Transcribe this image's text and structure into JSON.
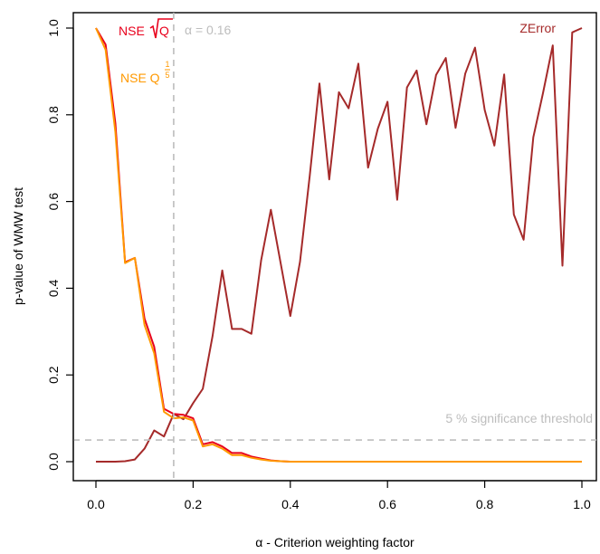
{
  "chart_data": {
    "type": "line",
    "title": "",
    "xlabel": "α - Criterion weighting factor",
    "ylabel": "p-value of WMW test",
    "xlim": [
      0,
      1
    ],
    "ylim": [
      0,
      1
    ],
    "x_ticks": [
      "0.0",
      "0.2",
      "0.4",
      "0.6",
      "0.8",
      "1.0"
    ],
    "y_ticks": [
      "0.0",
      "0.2",
      "0.4",
      "0.6",
      "0.8",
      "1.0"
    ],
    "grid": false,
    "x": [
      0.0,
      0.02,
      0.04,
      0.06,
      0.08,
      0.1,
      0.12,
      0.14,
      0.16,
      0.18,
      0.2,
      0.22,
      0.24,
      0.26,
      0.28,
      0.3,
      0.32,
      0.34,
      0.36,
      0.38,
      0.4,
      0.42,
      0.44,
      0.46,
      0.48,
      0.5,
      0.52,
      0.54,
      0.56,
      0.58,
      0.6,
      0.62,
      0.64,
      0.66,
      0.68,
      0.7,
      0.72,
      0.74,
      0.76,
      0.78,
      0.8,
      0.82,
      0.84,
      0.86,
      0.88,
      0.9,
      0.92,
      0.94,
      0.96,
      0.98,
      1.0
    ],
    "series": [
      {
        "name": "ZError",
        "color": "#a52a2a",
        "values": [
          0.0,
          0.0,
          0.0,
          0.001,
          0.005,
          0.03,
          0.072,
          0.058,
          0.11,
          0.098,
          0.135,
          0.168,
          0.29,
          0.441,
          0.306,
          0.306,
          0.295,
          0.465,
          0.581,
          0.458,
          0.336,
          0.461,
          0.66,
          0.872,
          0.651,
          0.852,
          0.815,
          0.918,
          0.678,
          0.768,
          0.83,
          0.604,
          0.863,
          0.902,
          0.778,
          0.892,
          0.931,
          0.77,
          0.895,
          0.955,
          0.811,
          0.729,
          0.893,
          0.57,
          0.512,
          0.748,
          0.85,
          0.96,
          0.452,
          0.99,
          1.0
        ]
      },
      {
        "name": "NSE √Q",
        "color": "#e8001c",
        "values": [
          1.0,
          0.962,
          0.78,
          0.46,
          0.47,
          0.33,
          0.265,
          0.122,
          0.11,
          0.108,
          0.1,
          0.04,
          0.045,
          0.035,
          0.02,
          0.02,
          0.012,
          0.007,
          0.003,
          0.001,
          0.0,
          0.0,
          0.0,
          0.0,
          0.0,
          0.0,
          0.0,
          0.0,
          0.0,
          0.0,
          0.0,
          0.0,
          0.0,
          0.0,
          0.0,
          0.0,
          0.0,
          0.0,
          0.0,
          0.0,
          0.0,
          0.0,
          0.0,
          0.0,
          0.0,
          0.0,
          0.0,
          0.0,
          0.0,
          0.0,
          0.0
        ]
      },
      {
        "name": "NSE Q^(1/5)",
        "color": "#ff9900",
        "values": [
          1.0,
          0.95,
          0.76,
          0.458,
          0.47,
          0.315,
          0.25,
          0.115,
          0.1,
          0.102,
          0.095,
          0.035,
          0.04,
          0.03,
          0.015,
          0.015,
          0.009,
          0.005,
          0.002,
          0.001,
          0.0,
          0.0,
          0.0,
          0.0,
          0.0,
          0.0,
          0.0,
          0.0,
          0.0,
          0.0,
          0.0,
          0.0,
          0.0,
          0.0,
          0.0,
          0.0,
          0.0,
          0.0,
          0.0,
          0.0,
          0.0,
          0.0,
          0.0,
          0.0,
          0.0,
          0.0,
          0.0,
          0.0,
          0.0,
          0.0,
          0.0
        ]
      }
    ],
    "reference_lines": [
      {
        "orientation": "vertical",
        "value": 0.16,
        "label": "α = 0.16",
        "color": "#bdbdbd"
      },
      {
        "orientation": "horizontal",
        "value": 0.05,
        "label": "5 % significance threshold",
        "color": "#bdbdbd"
      }
    ],
    "annotations": [
      {
        "series": "ZError",
        "text": "ZError",
        "color": "#a52a2a"
      },
      {
        "series": "NSE √Q",
        "text": "NSE",
        "math": "√Q",
        "color": "#e8001c"
      },
      {
        "series": "NSE Q^(1/5)",
        "text": "NSE Q",
        "superscript_num": "1",
        "superscript_den": "5",
        "color": "#ff9900"
      }
    ]
  }
}
